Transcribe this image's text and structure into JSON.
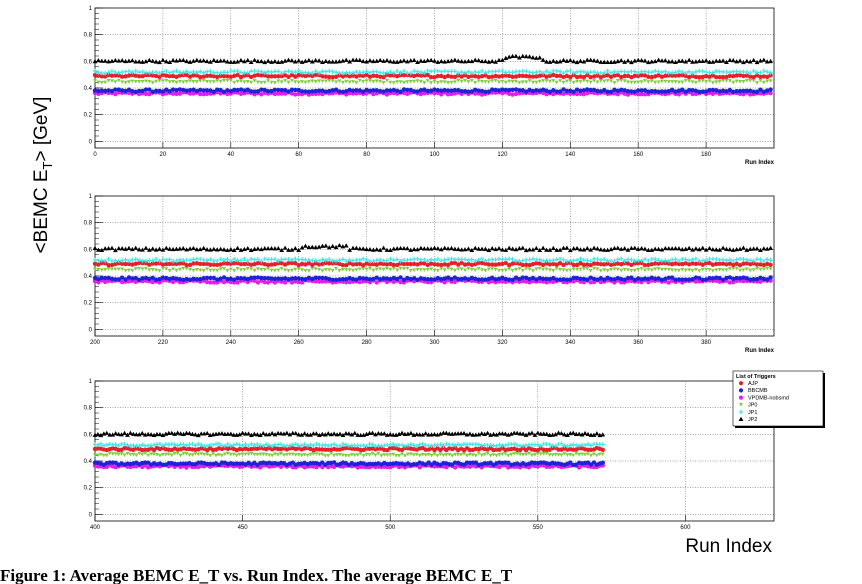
{
  "chart_data": {
    "type": "scatter",
    "ylabel_main": "<BEMC E",
    "ylabel_sub": "T",
    "ylabel_end": "> [GeV]",
    "xlabel_big": "Run Index",
    "ylim": [
      -0.05,
      1.0
    ],
    "yticks": [
      "0",
      "0.2",
      "0.4",
      "0.6",
      "0.8",
      "1"
    ],
    "legend": {
      "title": "List of Triggers",
      "placement": "top-right of bottom panel",
      "entries": [
        {
          "name": "AJP",
          "color": "#e8202a",
          "marker": "circle"
        },
        {
          "name": "BBCMB",
          "color": "#1e22d8",
          "marker": "circle"
        },
        {
          "name": "VPDMB-nobsmd",
          "color": "#e020e8",
          "marker": "circle"
        },
        {
          "name": "JP0",
          "color": "#7fcf3f",
          "marker": "triangle-down"
        },
        {
          "name": "JP1",
          "color": "#40e6e6",
          "marker": "star"
        },
        {
          "name": "JP2",
          "color": "#000000",
          "marker": "triangle-up"
        }
      ]
    },
    "series_levels": [
      {
        "name": "JP2",
        "value": 0.6
      },
      {
        "name": "JP1",
        "value": 0.52
      },
      {
        "name": "AJP",
        "value": 0.49
      },
      {
        "name": "JP0",
        "value": 0.45
      },
      {
        "name": "BBCMB",
        "value": 0.38
      },
      {
        "name": "VPDMB-nobsmd",
        "value": 0.36
      }
    ],
    "panels": [
      {
        "xlabel": "Run Index",
        "xlim": [
          0,
          200
        ],
        "xticks": [
          "0",
          "20",
          "40",
          "60",
          "80",
          "100",
          "120",
          "140",
          "160",
          "180"
        ],
        "data_range": [
          0,
          199
        ]
      },
      {
        "xlabel": "Run Index",
        "xlim": [
          200,
          400
        ],
        "xticks": [
          "200",
          "220",
          "240",
          "260",
          "280",
          "300",
          "320",
          "340",
          "360",
          "380"
        ],
        "data_range": [
          200,
          399
        ]
      },
      {
        "xlabel": "",
        "xlim": [
          400,
          630
        ],
        "xticks": [
          "400",
          "450",
          "500",
          "550",
          "600"
        ],
        "data_range": [
          400,
          572
        ]
      }
    ],
    "grid": true
  },
  "caption": "Figure 1: Average BEMC E_T vs. Run Index. The average BEMC E_T"
}
